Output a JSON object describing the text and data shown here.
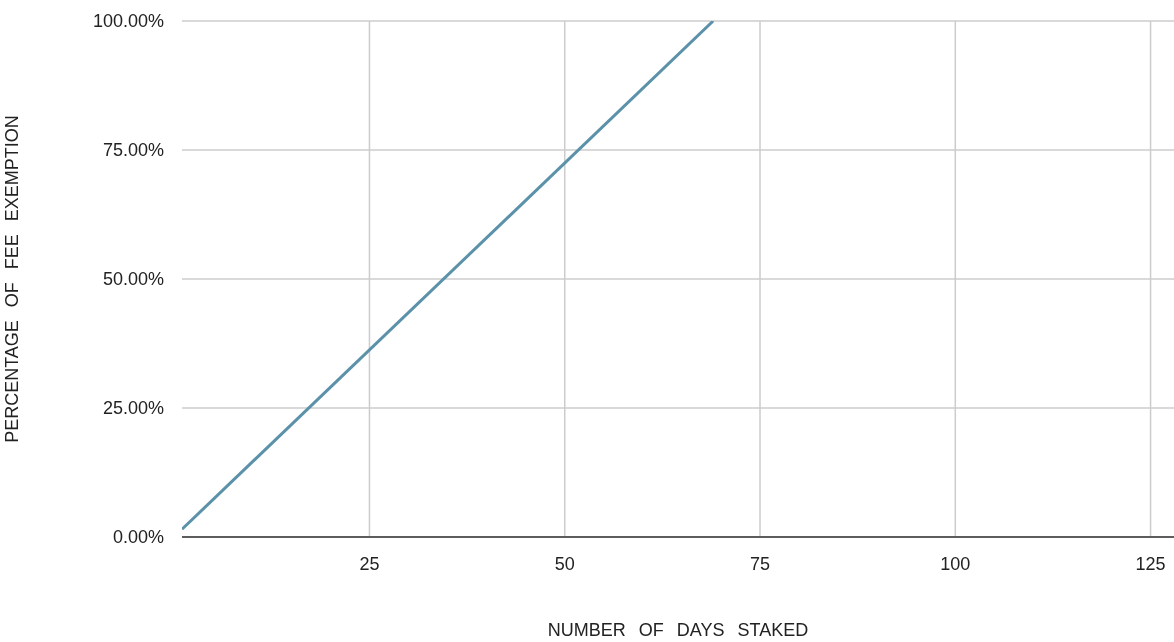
{
  "chart_data": {
    "type": "line",
    "xlabel": "NUMBER OF DAYS STAKED",
    "ylabel": "PERCENTAGE OF FEE EXEMPTION",
    "x": [
      1,
      69
    ],
    "series": [
      {
        "color": "#5b92aa",
        "values": [
          1.5,
          100
        ]
      }
    ],
    "xlim": [
      1,
      128
    ],
    "xticks": [
      25,
      50,
      75,
      100,
      125
    ],
    "ylim": [
      0,
      100
    ],
    "yticks": [
      {
        "value": 0,
        "label": "0.00%"
      },
      {
        "value": 25,
        "label": "25.00%"
      },
      {
        "value": 50,
        "label": "50.00%"
      },
      {
        "value": 75,
        "label": "75.00%"
      },
      {
        "value": 100,
        "label": "100.00%"
      }
    ],
    "grid": true,
    "marker": "none",
    "line_style": "solid"
  }
}
